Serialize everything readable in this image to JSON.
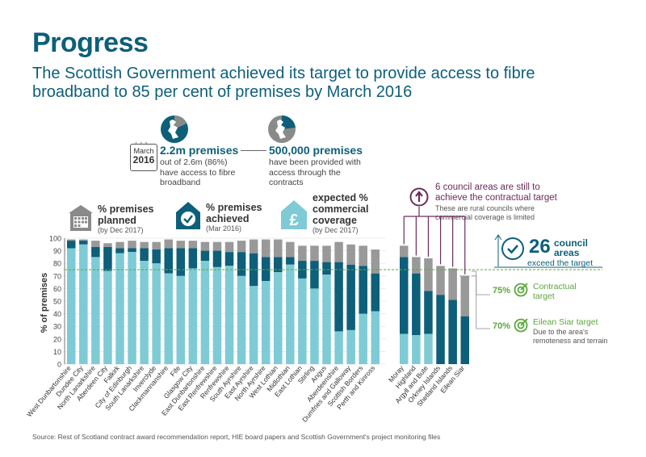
{
  "header": {
    "title": "Progress",
    "subtitle": "The Scottish Government achieved its target to provide access to fibre broadband to 85 per cent of premises by March 2016"
  },
  "milestone": {
    "date_line1": "March",
    "date_line2": "2016",
    "premises_title": "2.2m premises",
    "premises_desc": "out of 2.6m (86%) have access to fibre broadband",
    "provided_title": "500,000 premises",
    "provided_desc": "have been provided with access through the contracts"
  },
  "legend": {
    "planned_title": "% premises planned",
    "planned_note": "(by Dec 2017)",
    "achieved_title": "% premises achieved",
    "achieved_note": "(Mar 2016)",
    "commercial_title": "expected % commercial coverage",
    "commercial_note": "(by Dec 2017)"
  },
  "callouts": {
    "council_title": "6 council areas are still to achieve the contractual target",
    "council_note": "These are rural councils where commercial coverage is limited",
    "exceed_count": "26",
    "exceed_unit": "council areas",
    "exceed_text": "exceed the target",
    "contract_pct": "75%",
    "contract_label": "Contractual target",
    "eilean_pct": "70%",
    "eilean_label": "Eilean Siar target",
    "eilean_note": "Due to the area's remoteness and terrain"
  },
  "source": "Source: Rest of Scotland contract award recommendation report, HIE board papers and Scottish Government's project monitoring files",
  "colors": {
    "planned": "#999999",
    "achieved": "#0d5f7a",
    "commercial": "#7ecbd6",
    "target_line": "#5aa83c",
    "callout": "#6b2c5b",
    "title": "#0d5f7a"
  },
  "chart_data": {
    "type": "bar",
    "ylabel": "% of premises",
    "ylim": [
      0,
      100
    ],
    "yticks": [
      0,
      10,
      20,
      30,
      40,
      50,
      60,
      70,
      80,
      90,
      100
    ],
    "contractual_target": 75,
    "eilean_siar_target": 70,
    "categories": [
      "West Dunbartonshire",
      "Dundee City",
      "North Lanarkshire",
      "Aberdeen City",
      "Falkirk",
      "City of Edinburgh",
      "South Lanarkshire",
      "Inverclyde",
      "Clackmannanshire",
      "Fife",
      "Glasgow City",
      "East Dunbartonshire",
      "East Renfrewshire",
      "Renfrewshire",
      "South Ayrshire",
      "East Ayrshire",
      "North Ayrshire",
      "West Lothian",
      "Midlothian",
      "East Lothian",
      "Stirling",
      "Angus",
      "Aberdeenshire",
      "Dumfries and Galloway",
      "Scottish Borders",
      "Perth and Kinross",
      "Moray",
      "Highland",
      "Argyll and Bute",
      "Orkney Islands",
      "Shetland Islands",
      "Eilean Siar"
    ],
    "series": [
      {
        "name": "% premises planned",
        "values": [
          99,
          99,
          98,
          96,
          97,
          98,
          97,
          97,
          99,
          98,
          98,
          97,
          97,
          97,
          98,
          99,
          99,
          99,
          97,
          94,
          94,
          94,
          97,
          95,
          94,
          91,
          94,
          85,
          84,
          78,
          76,
          70
        ]
      },
      {
        "name": "% premises achieved",
        "values": [
          98,
          98,
          93,
          93,
          92,
          92,
          92,
          91,
          92,
          92,
          92,
          90,
          90,
          89,
          89,
          88,
          85,
          85,
          85,
          82,
          82,
          81,
          81,
          79,
          78,
          72,
          85,
          72,
          58,
          55,
          51,
          38
        ]
      },
      {
        "name": "expected % commercial coverage",
        "values": [
          92,
          95,
          85,
          74,
          88,
          89,
          82,
          80,
          72,
          70,
          76,
          82,
          77,
          78,
          70,
          62,
          66,
          73,
          79,
          68,
          60,
          71,
          26,
          27,
          40,
          42,
          24,
          23,
          24,
          0,
          0,
          0
        ]
      }
    ]
  }
}
